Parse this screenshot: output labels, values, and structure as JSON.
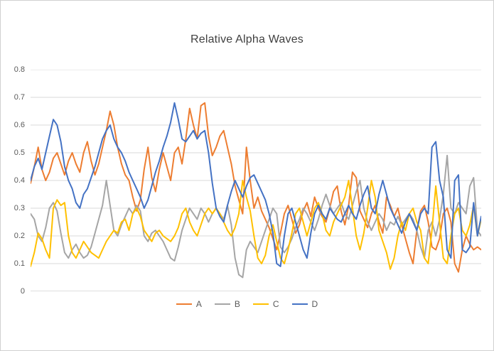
{
  "chart_data": {
    "type": "line",
    "title": "Relative Alpha Waves",
    "title_color": "#404040",
    "xlabel": "",
    "ylabel": "",
    "ylim": [
      0,
      0.8
    ],
    "yticks": [
      {
        "v": 0.0,
        "label": "0"
      },
      {
        "v": 0.1,
        "label": "0.1"
      },
      {
        "v": 0.2,
        "label": "0.2"
      },
      {
        "v": 0.3,
        "label": "0.3"
      },
      {
        "v": 0.4,
        "label": "0.4"
      },
      {
        "v": 0.5,
        "label": "0.5"
      },
      {
        "v": 0.6,
        "label": "0.6"
      },
      {
        "v": 0.7,
        "label": "0.7"
      },
      {
        "v": 0.8,
        "label": "0.8"
      }
    ],
    "grid": true,
    "gridline_color": "#d9d9d9",
    "axis_line_color": "#bfbfbf",
    "axis_text_color": "#595959",
    "legend_position": "bottom",
    "series": [
      {
        "name": "A",
        "color": "#ED7D31",
        "values": [
          0.39,
          0.45,
          0.52,
          0.44,
          0.4,
          0.43,
          0.48,
          0.5,
          0.46,
          0.42,
          0.47,
          0.5,
          0.46,
          0.43,
          0.5,
          0.54,
          0.47,
          0.42,
          0.46,
          0.52,
          0.58,
          0.65,
          0.6,
          0.52,
          0.46,
          0.42,
          0.4,
          0.34,
          0.29,
          0.33,
          0.44,
          0.52,
          0.41,
          0.36,
          0.44,
          0.5,
          0.45,
          0.4,
          0.5,
          0.52,
          0.46,
          0.55,
          0.66,
          0.6,
          0.55,
          0.67,
          0.68,
          0.56,
          0.49,
          0.52,
          0.56,
          0.58,
          0.52,
          0.46,
          0.38,
          0.33,
          0.28,
          0.52,
          0.4,
          0.3,
          0.34,
          0.29,
          0.26,
          0.23,
          0.19,
          0.15,
          0.21,
          0.28,
          0.31,
          0.26,
          0.21,
          0.24,
          0.29,
          0.32,
          0.27,
          0.34,
          0.3,
          0.27,
          0.25,
          0.3,
          0.36,
          0.38,
          0.29,
          0.24,
          0.31,
          0.43,
          0.41,
          0.29,
          0.26,
          0.23,
          0.28,
          0.31,
          0.25,
          0.21,
          0.34,
          0.31,
          0.27,
          0.3,
          0.24,
          0.19,
          0.14,
          0.1,
          0.22,
          0.29,
          0.31,
          0.25,
          0.16,
          0.15,
          0.19,
          0.28,
          0.3,
          0.25,
          0.1,
          0.07,
          0.15,
          0.2,
          0.17,
          0.15,
          0.16,
          0.15
        ]
      },
      {
        "name": "B",
        "color": "#A5A5A5",
        "values": [
          0.28,
          0.26,
          0.2,
          0.18,
          0.23,
          0.3,
          0.32,
          0.29,
          0.21,
          0.14,
          0.12,
          0.15,
          0.17,
          0.14,
          0.12,
          0.13,
          0.16,
          0.21,
          0.26,
          0.31,
          0.4,
          0.31,
          0.22,
          0.2,
          0.24,
          0.27,
          0.3,
          0.28,
          0.31,
          0.29,
          0.2,
          0.18,
          0.21,
          0.22,
          0.2,
          0.18,
          0.15,
          0.12,
          0.11,
          0.16,
          0.22,
          0.26,
          0.3,
          0.28,
          0.26,
          0.3,
          0.28,
          0.25,
          0.28,
          0.3,
          0.28,
          0.26,
          0.31,
          0.24,
          0.12,
          0.06,
          0.05,
          0.15,
          0.18,
          0.16,
          0.14,
          0.18,
          0.22,
          0.26,
          0.3,
          0.28,
          0.16,
          0.14,
          0.16,
          0.19,
          0.23,
          0.26,
          0.3,
          0.28,
          0.25,
          0.22,
          0.26,
          0.31,
          0.35,
          0.31,
          0.28,
          0.3,
          0.32,
          0.28,
          0.26,
          0.31,
          0.36,
          0.4,
          0.3,
          0.25,
          0.22,
          0.25,
          0.28,
          0.26,
          0.22,
          0.25,
          0.24,
          0.27,
          0.24,
          0.26,
          0.28,
          0.26,
          0.22,
          0.16,
          0.12,
          0.22,
          0.25,
          0.2,
          0.26,
          0.35,
          0.49,
          0.3,
          0.28,
          0.32,
          0.3,
          0.28,
          0.38,
          0.41,
          0.22,
          0.2
        ]
      },
      {
        "name": "C",
        "color": "#FFC000",
        "values": [
          0.09,
          0.14,
          0.21,
          0.19,
          0.15,
          0.12,
          0.3,
          0.33,
          0.31,
          0.32,
          0.2,
          0.14,
          0.12,
          0.15,
          0.18,
          0.16,
          0.14,
          0.13,
          0.12,
          0.15,
          0.18,
          0.2,
          0.22,
          0.21,
          0.25,
          0.26,
          0.22,
          0.28,
          0.3,
          0.27,
          0.22,
          0.2,
          0.18,
          0.21,
          0.22,
          0.2,
          0.19,
          0.18,
          0.2,
          0.23,
          0.28,
          0.3,
          0.25,
          0.22,
          0.2,
          0.24,
          0.28,
          0.3,
          0.28,
          0.3,
          0.28,
          0.25,
          0.22,
          0.2,
          0.23,
          0.28,
          0.4,
          0.34,
          0.29,
          0.2,
          0.12,
          0.1,
          0.13,
          0.2,
          0.24,
          0.18,
          0.12,
          0.1,
          0.15,
          0.21,
          0.28,
          0.3,
          0.25,
          0.2,
          0.25,
          0.3,
          0.32,
          0.28,
          0.22,
          0.2,
          0.25,
          0.28,
          0.31,
          0.34,
          0.4,
          0.3,
          0.2,
          0.15,
          0.21,
          0.3,
          0.4,
          0.34,
          0.22,
          0.18,
          0.14,
          0.08,
          0.12,
          0.2,
          0.25,
          0.22,
          0.28,
          0.3,
          0.25,
          0.22,
          0.12,
          0.1,
          0.22,
          0.38,
          0.25,
          0.12,
          0.1,
          0.2,
          0.28,
          0.3,
          0.22,
          0.2,
          0.24,
          0.31,
          0.2,
          0.26
        ]
      },
      {
        "name": "D",
        "color": "#4472C4",
        "values": [
          0.4,
          0.45,
          0.48,
          0.44,
          0.5,
          0.56,
          0.62,
          0.6,
          0.54,
          0.45,
          0.4,
          0.37,
          0.32,
          0.3,
          0.35,
          0.37,
          0.41,
          0.45,
          0.5,
          0.55,
          0.58,
          0.6,
          0.55,
          0.52,
          0.5,
          0.47,
          0.43,
          0.4,
          0.37,
          0.34,
          0.3,
          0.33,
          0.38,
          0.43,
          0.47,
          0.52,
          0.56,
          0.61,
          0.68,
          0.62,
          0.55,
          0.54,
          0.56,
          0.58,
          0.55,
          0.57,
          0.58,
          0.5,
          0.39,
          0.3,
          0.27,
          0.25,
          0.31,
          0.36,
          0.4,
          0.37,
          0.34,
          0.38,
          0.41,
          0.42,
          0.39,
          0.36,
          0.33,
          0.28,
          0.21,
          0.1,
          0.09,
          0.2,
          0.28,
          0.3,
          0.25,
          0.2,
          0.15,
          0.12,
          0.21,
          0.28,
          0.31,
          0.28,
          0.26,
          0.3,
          0.28,
          0.26,
          0.25,
          0.28,
          0.31,
          0.28,
          0.26,
          0.31,
          0.35,
          0.38,
          0.3,
          0.28,
          0.35,
          0.4,
          0.35,
          0.3,
          0.27,
          0.24,
          0.21,
          0.25,
          0.28,
          0.25,
          0.22,
          0.28,
          0.3,
          0.28,
          0.52,
          0.54,
          0.4,
          0.34,
          0.15,
          0.12,
          0.4,
          0.42,
          0.15,
          0.14,
          0.16,
          0.32,
          0.2,
          0.27
        ]
      }
    ]
  }
}
